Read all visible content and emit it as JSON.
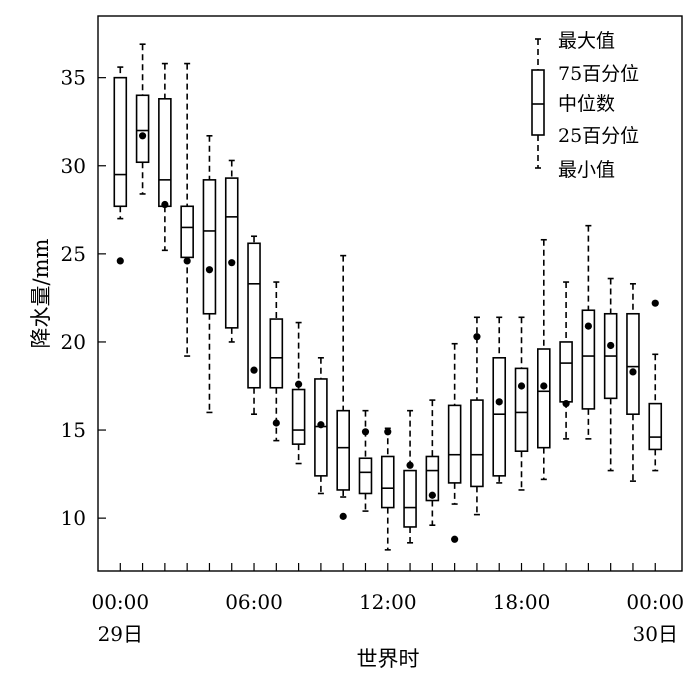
{
  "chart_data": {
    "type": "box",
    "ylabel": "降水量/mm",
    "xlabel": "世界时",
    "ylim": [
      7,
      38.5
    ],
    "xlim": [
      -1,
      25.2
    ],
    "yticks": [
      10,
      15,
      20,
      25,
      30,
      35
    ],
    "xticks": [
      {
        "x": 0,
        "label": "00:00",
        "sublabel": "29日"
      },
      {
        "x": 6,
        "label": "06:00",
        "sublabel": ""
      },
      {
        "x": 12,
        "label": "12:00",
        "sublabel": ""
      },
      {
        "x": 18,
        "label": "18:00",
        "sublabel": ""
      },
      {
        "x": 24,
        "label": "00:00",
        "sublabel": "30日"
      }
    ],
    "legend": {
      "position": "top-right",
      "items": [
        "最大值",
        "75百分位",
        "中位数",
        "25百分位",
        "最小值"
      ]
    },
    "boxes": [
      {
        "x": 0,
        "min": 27.0,
        "q1": 27.7,
        "median": 29.5,
        "q3": 35.0,
        "max": 35.6,
        "point": 24.6
      },
      {
        "x": 1,
        "min": 28.4,
        "q1": 30.2,
        "median": 32.0,
        "q3": 34.0,
        "max": 36.9,
        "point": 31.7
      },
      {
        "x": 2,
        "min": 25.2,
        "q1": 27.7,
        "median": 29.2,
        "q3": 33.8,
        "max": 35.8,
        "point": 27.8
      },
      {
        "x": 3,
        "min": 19.2,
        "q1": 24.8,
        "median": 26.5,
        "q3": 27.7,
        "max": 35.8,
        "point": 24.6
      },
      {
        "x": 4,
        "min": 16.0,
        "q1": 21.6,
        "median": 26.3,
        "q3": 29.2,
        "max": 31.7,
        "point": 24.1
      },
      {
        "x": 5,
        "min": 20.0,
        "q1": 20.8,
        "median": 27.1,
        "q3": 29.3,
        "max": 30.3,
        "point": 24.5
      },
      {
        "x": 6,
        "min": 15.9,
        "q1": 17.4,
        "median": 23.3,
        "q3": 25.6,
        "max": 26.0,
        "point": 18.4
      },
      {
        "x": 7,
        "min": 14.4,
        "q1": 17.4,
        "median": 19.1,
        "q3": 21.3,
        "max": 23.4,
        "point": 15.4
      },
      {
        "x": 8,
        "min": 13.1,
        "q1": 14.2,
        "median": 15.0,
        "q3": 17.3,
        "max": 21.1,
        "point": 17.6
      },
      {
        "x": 9,
        "min": 11.4,
        "q1": 12.4,
        "median": 15.2,
        "q3": 17.9,
        "max": 19.1,
        "point": 15.3
      },
      {
        "x": 10,
        "min": 11.2,
        "q1": 11.6,
        "median": 14.0,
        "q3": 16.1,
        "max": 24.9,
        "point": 10.1
      },
      {
        "x": 11,
        "min": 10.4,
        "q1": 11.4,
        "median": 12.6,
        "q3": 13.4,
        "max": 16.1,
        "point": 14.9
      },
      {
        "x": 12,
        "min": 8.2,
        "q1": 10.6,
        "median": 11.7,
        "q3": 13.5,
        "max": 15.1,
        "point": 14.9
      },
      {
        "x": 13,
        "min": 8.6,
        "q1": 9.5,
        "median": 10.6,
        "q3": 12.7,
        "max": 16.1,
        "point": 13.0
      },
      {
        "x": 14,
        "min": 9.6,
        "q1": 11.0,
        "median": 12.7,
        "q3": 13.5,
        "max": 16.7,
        "point": 11.3
      },
      {
        "x": 15,
        "min": 10.8,
        "q1": 12.0,
        "median": 13.6,
        "q3": 16.4,
        "max": 19.9,
        "point": 8.8
      },
      {
        "x": 16,
        "min": 10.2,
        "q1": 11.8,
        "median": 13.6,
        "q3": 16.7,
        "max": 21.4,
        "point": 20.3
      },
      {
        "x": 17,
        "min": 12.0,
        "q1": 12.4,
        "median": 15.9,
        "q3": 19.1,
        "max": 21.4,
        "point": 16.6
      },
      {
        "x": 18,
        "min": 11.6,
        "q1": 13.8,
        "median": 16.0,
        "q3": 18.5,
        "max": 21.4,
        "point": 17.5
      },
      {
        "x": 19,
        "min": 12.2,
        "q1": 14.0,
        "median": 17.2,
        "q3": 19.6,
        "max": 25.8,
        "point": 17.5
      },
      {
        "x": 20,
        "min": 14.5,
        "q1": 16.6,
        "median": 18.8,
        "q3": 20.0,
        "max": 23.4,
        "point": 16.5
      },
      {
        "x": 21,
        "min": 14.5,
        "q1": 16.2,
        "median": 19.2,
        "q3": 21.8,
        "max": 26.6,
        "point": 20.9
      },
      {
        "x": 22,
        "min": 12.7,
        "q1": 16.8,
        "median": 19.2,
        "q3": 21.6,
        "max": 23.6,
        "point": 19.8
      },
      {
        "x": 23,
        "min": 12.1,
        "q1": 15.9,
        "median": 18.6,
        "q3": 21.6,
        "max": 23.3,
        "point": 18.3
      },
      {
        "x": 24,
        "min": 12.7,
        "q1": 13.9,
        "median": 14.6,
        "q3": 16.5,
        "max": 19.3,
        "point": 22.2
      }
    ]
  }
}
